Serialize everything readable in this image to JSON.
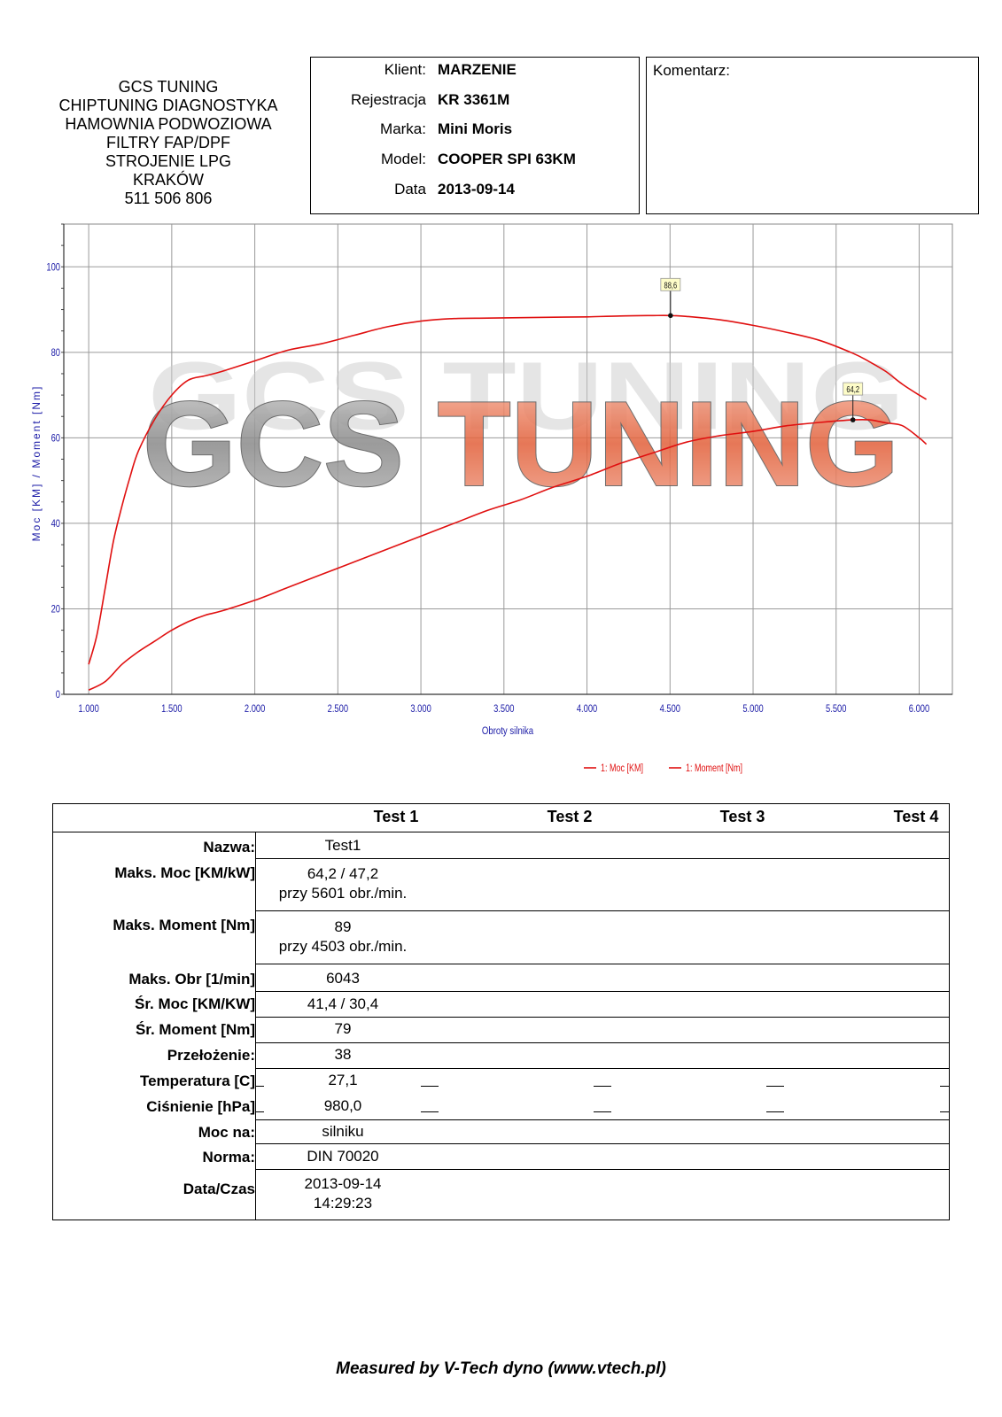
{
  "company": {
    "lines": [
      "GCS TUNING",
      "CHIPTUNING DIAGNOSTYKA",
      "HAMOWNIA PODWOZIOWA",
      "FILTRY FAP/DPF",
      "STROJENIE LPG",
      "KRAKÓW",
      "511 506 806"
    ]
  },
  "client": [
    {
      "label": "Klient:",
      "value": "MARZENIE"
    },
    {
      "label": "Rejestracja",
      "value": "KR 3361M"
    },
    {
      "label": "Marka:",
      "value": "Mini Moris"
    },
    {
      "label": "Model:",
      "value": "COOPER SPI 63KM"
    },
    {
      "label": "Data",
      "value": "2013-09-14"
    }
  ],
  "comment_label": "Komentarz:",
  "chart_data": {
    "type": "line",
    "title": "",
    "watermark": "GCS TUNING",
    "xlabel": "Obroty silnika",
    "ylabel": "Moc [KM] / Moment [Nm]",
    "xlim": [
      850,
      6200
    ],
    "ylim": [
      0,
      110
    ],
    "x_ticks": [
      1000,
      1500,
      2000,
      2500,
      3000,
      3500,
      4000,
      4500,
      5000,
      5500,
      6000
    ],
    "x_tick_labels": [
      "1.000",
      "1.500",
      "2.000",
      "2.500",
      "3.000",
      "3.500",
      "4.000",
      "4.500",
      "5.000",
      "5.500",
      "6.000"
    ],
    "y_ticks": [
      0,
      20,
      40,
      60,
      80,
      100
    ],
    "y_tick_labels": [
      "0",
      "20",
      "40",
      "60",
      "80",
      "100"
    ],
    "grid": true,
    "legend_position": "bottom-right",
    "line_color": "#e01010",
    "series": [
      {
        "name": "1: Moc [KM]",
        "x": [
          1000,
          1100,
          1200,
          1300,
          1400,
          1500,
          1600,
          1700,
          1800,
          2000,
          2200,
          2400,
          2600,
          2800,
          3000,
          3200,
          3400,
          3600,
          3800,
          4000,
          4200,
          4400,
          4600,
          4800,
          5000,
          5200,
          5400,
          5600,
          5700,
          5800,
          5900,
          6000,
          6043
        ],
        "y": [
          1,
          3,
          7,
          10,
          12.5,
          15,
          17,
          18.5,
          19.5,
          22,
          25,
          28,
          31,
          34,
          37,
          40,
          43,
          45.5,
          48.5,
          51,
          54,
          56.5,
          59,
          60.5,
          61.5,
          62.8,
          63.6,
          64.2,
          64.2,
          63.5,
          62.8,
          60,
          58.5
        ]
      },
      {
        "name": "1: Moment [Nm]",
        "x": [
          1000,
          1050,
          1100,
          1150,
          1200,
          1250,
          1300,
          1400,
          1500,
          1600,
          1700,
          1800,
          2000,
          2200,
          2400,
          2600,
          2800,
          3000,
          3200,
          3400,
          3600,
          3800,
          4000,
          4200,
          4400,
          4503,
          4600,
          4800,
          5000,
          5200,
          5400,
          5600,
          5700,
          5800,
          5900,
          6000,
          6043
        ],
        "y": [
          7,
          14,
          25,
          36,
          44,
          51,
          57,
          64.5,
          70,
          73.5,
          74.5,
          75.5,
          78,
          80.5,
          82,
          84,
          86,
          87.3,
          87.9,
          88,
          88.1,
          88.2,
          88.3,
          88.5,
          88.6,
          88.6,
          88.4,
          87.6,
          86.3,
          84.7,
          82.8,
          79.8,
          77.8,
          75.5,
          72.5,
          70,
          69
        ]
      }
    ],
    "annotations": [
      {
        "label": "88,6",
        "x": 4503,
        "y": 88.6
      },
      {
        "label": "64,2",
        "x": 5601,
        "y": 64.2
      }
    ]
  },
  "results": {
    "columns": [
      "Test 1",
      "Test 2",
      "Test 3",
      "Test 4"
    ],
    "rows": [
      {
        "label": "Nazwa:",
        "value": [
          "Test1"
        ]
      },
      {
        "label": "Maks. Moc [KM/kW]",
        "value": [
          "64,2 / 47,2",
          "przy 5601 obr./min."
        ]
      },
      {
        "label": "Maks. Moment [Nm]",
        "value": [
          "89",
          "przy 4503 obr./min."
        ]
      },
      {
        "label": "Maks. Obr [1/min]",
        "value": [
          "6043"
        ]
      },
      {
        "label": "Śr. Moc [KM/KW]",
        "value": [
          "41,4 / 30,4"
        ]
      },
      {
        "label": "Śr. Moment [Nm]",
        "value": [
          "79"
        ]
      },
      {
        "label": "Przełożenie:",
        "value": [
          "38"
        ]
      },
      {
        "label": "Temperatura [C]",
        "value": [
          "27,1"
        ]
      },
      {
        "label": "Ciśnienie [hPa]",
        "value": [
          "980,0"
        ]
      },
      {
        "label": "Moc na:",
        "value": [
          "silniku"
        ]
      },
      {
        "label": "Norma:",
        "value": [
          "DIN 70020"
        ]
      },
      {
        "label": "Data/Czas",
        "value": [
          "2013-09-14",
          "14:29:23"
        ]
      }
    ]
  },
  "footer": "Measured by V-Tech dyno (www.vtech.pl)"
}
